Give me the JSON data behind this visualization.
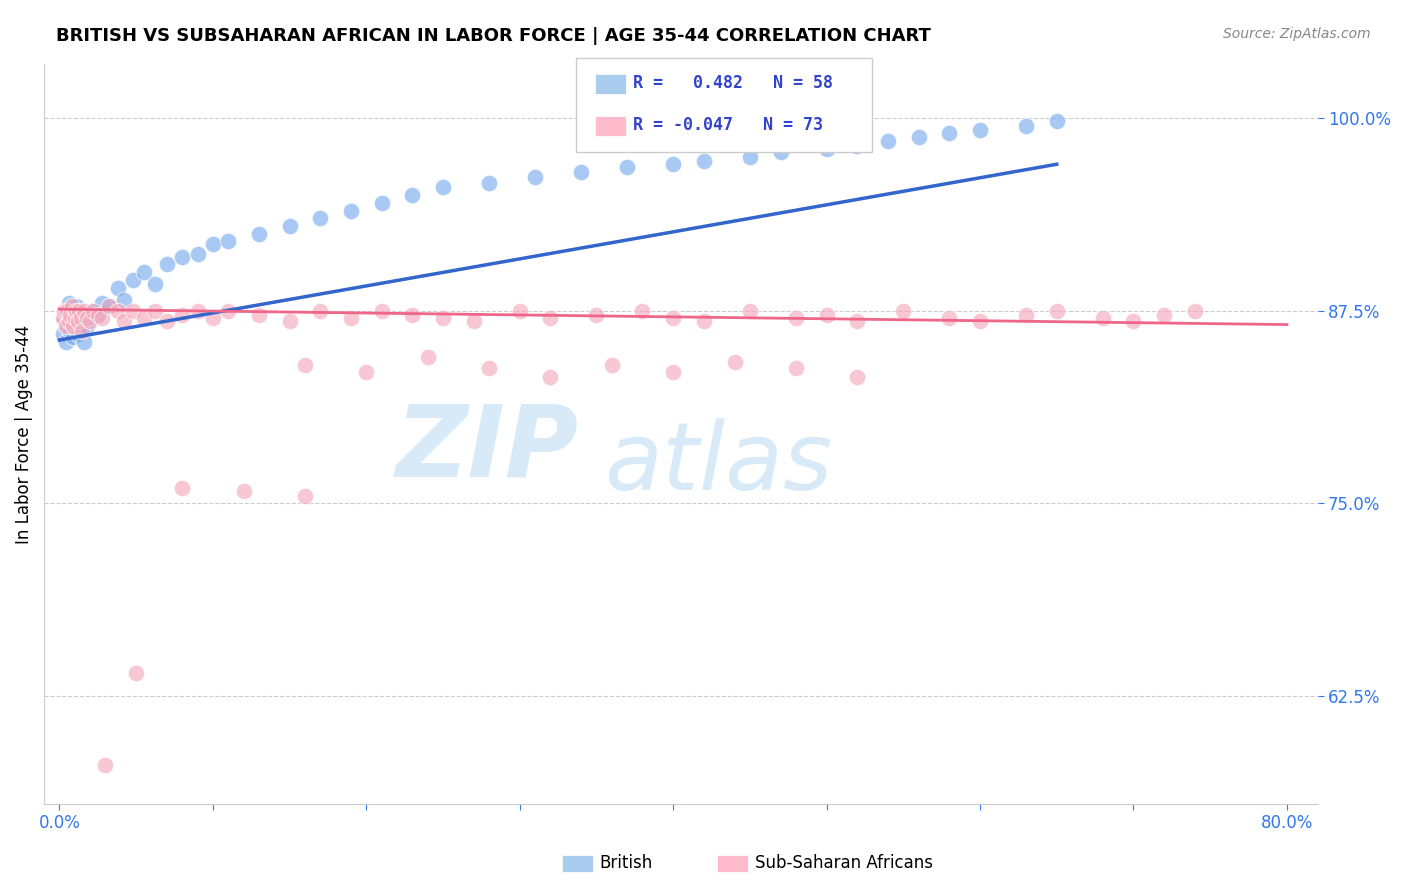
{
  "title": "BRITISH VS SUBSAHARAN AFRICAN IN LABOR FORCE | AGE 35-44 CORRELATION CHART",
  "source": "Source: ZipAtlas.com",
  "ylabel": "In Labor Force | Age 35-44",
  "blue_R": 0.482,
  "blue_N": 58,
  "pink_R": -0.047,
  "pink_N": 73,
  "blue_color": "#7AACED",
  "pink_color": "#F4AABC",
  "blue_line_color": "#3366CC",
  "pink_line_color": "#EE6688",
  "legend_blue_fill": "#AACCEE",
  "legend_pink_fill": "#FFBBCC",
  "watermark_color": "#D8EAF8",
  "y_ticks": [
    0.625,
    0.75,
    0.875,
    1.0
  ],
  "x_ticks": [
    0.0,
    0.1,
    0.2,
    0.3,
    0.4,
    0.5,
    0.6,
    0.7,
    0.8
  ],
  "blue_x": [
    0.002,
    0.003,
    0.004,
    0.005,
    0.005,
    0.006,
    0.006,
    0.007,
    0.007,
    0.008,
    0.009,
    0.009,
    0.01,
    0.011,
    0.012,
    0.013,
    0.014,
    0.015,
    0.016,
    0.018,
    0.02,
    0.022,
    0.025,
    0.028,
    0.032,
    0.038,
    0.042,
    0.048,
    0.055,
    0.062,
    0.07,
    0.08,
    0.09,
    0.1,
    0.11,
    0.13,
    0.15,
    0.17,
    0.19,
    0.21,
    0.23,
    0.25,
    0.28,
    0.31,
    0.34,
    0.37,
    0.4,
    0.42,
    0.45,
    0.47,
    0.5,
    0.52,
    0.54,
    0.56,
    0.58,
    0.6,
    0.63,
    0.65
  ],
  "blue_y": [
    0.86,
    0.87,
    0.855,
    0.875,
    0.865,
    0.88,
    0.87,
    0.875,
    0.862,
    0.868,
    0.872,
    0.858,
    0.865,
    0.878,
    0.86,
    0.872,
    0.866,
    0.87,
    0.855,
    0.865,
    0.87,
    0.875,
    0.872,
    0.88,
    0.878,
    0.89,
    0.882,
    0.895,
    0.9,
    0.892,
    0.905,
    0.91,
    0.912,
    0.918,
    0.92,
    0.925,
    0.93,
    0.935,
    0.94,
    0.945,
    0.95,
    0.955,
    0.958,
    0.962,
    0.965,
    0.968,
    0.97,
    0.972,
    0.975,
    0.978,
    0.98,
    0.982,
    0.985,
    0.988,
    0.99,
    0.992,
    0.995,
    0.998
  ],
  "pink_x": [
    0.002,
    0.003,
    0.004,
    0.005,
    0.006,
    0.007,
    0.008,
    0.009,
    0.01,
    0.011,
    0.012,
    0.013,
    0.014,
    0.015,
    0.016,
    0.018,
    0.02,
    0.022,
    0.025,
    0.028,
    0.032,
    0.038,
    0.042,
    0.048,
    0.055,
    0.062,
    0.07,
    0.08,
    0.09,
    0.1,
    0.11,
    0.13,
    0.15,
    0.17,
    0.19,
    0.21,
    0.23,
    0.25,
    0.27,
    0.3,
    0.32,
    0.35,
    0.38,
    0.4,
    0.42,
    0.45,
    0.48,
    0.5,
    0.52,
    0.55,
    0.58,
    0.6,
    0.63,
    0.65,
    0.68,
    0.7,
    0.72,
    0.74,
    0.16,
    0.2,
    0.24,
    0.28,
    0.32,
    0.36,
    0.4,
    0.44,
    0.48,
    0.52,
    0.08,
    0.12,
    0.16,
    0.05,
    0.03
  ],
  "pink_y": [
    0.87,
    0.875,
    0.865,
    0.875,
    0.868,
    0.872,
    0.878,
    0.865,
    0.87,
    0.875,
    0.868,
    0.875,
    0.87,
    0.862,
    0.875,
    0.87,
    0.868,
    0.875,
    0.872,
    0.87,
    0.878,
    0.875,
    0.868,
    0.875,
    0.87,
    0.875,
    0.868,
    0.872,
    0.875,
    0.87,
    0.875,
    0.872,
    0.868,
    0.875,
    0.87,
    0.875,
    0.872,
    0.87,
    0.868,
    0.875,
    0.87,
    0.872,
    0.875,
    0.87,
    0.868,
    0.875,
    0.87,
    0.872,
    0.868,
    0.875,
    0.87,
    0.868,
    0.872,
    0.875,
    0.87,
    0.868,
    0.872,
    0.875,
    0.84,
    0.835,
    0.845,
    0.838,
    0.832,
    0.84,
    0.835,
    0.842,
    0.838,
    0.832,
    0.76,
    0.758,
    0.755,
    0.64,
    0.58
  ],
  "blue_line_x0": 0.0,
  "blue_line_x1": 0.65,
  "blue_line_y0": 0.856,
  "blue_line_y1": 0.97,
  "pink_line_x0": 0.0,
  "pink_line_x1": 0.8,
  "pink_line_y0": 0.876,
  "pink_line_y1": 0.866
}
